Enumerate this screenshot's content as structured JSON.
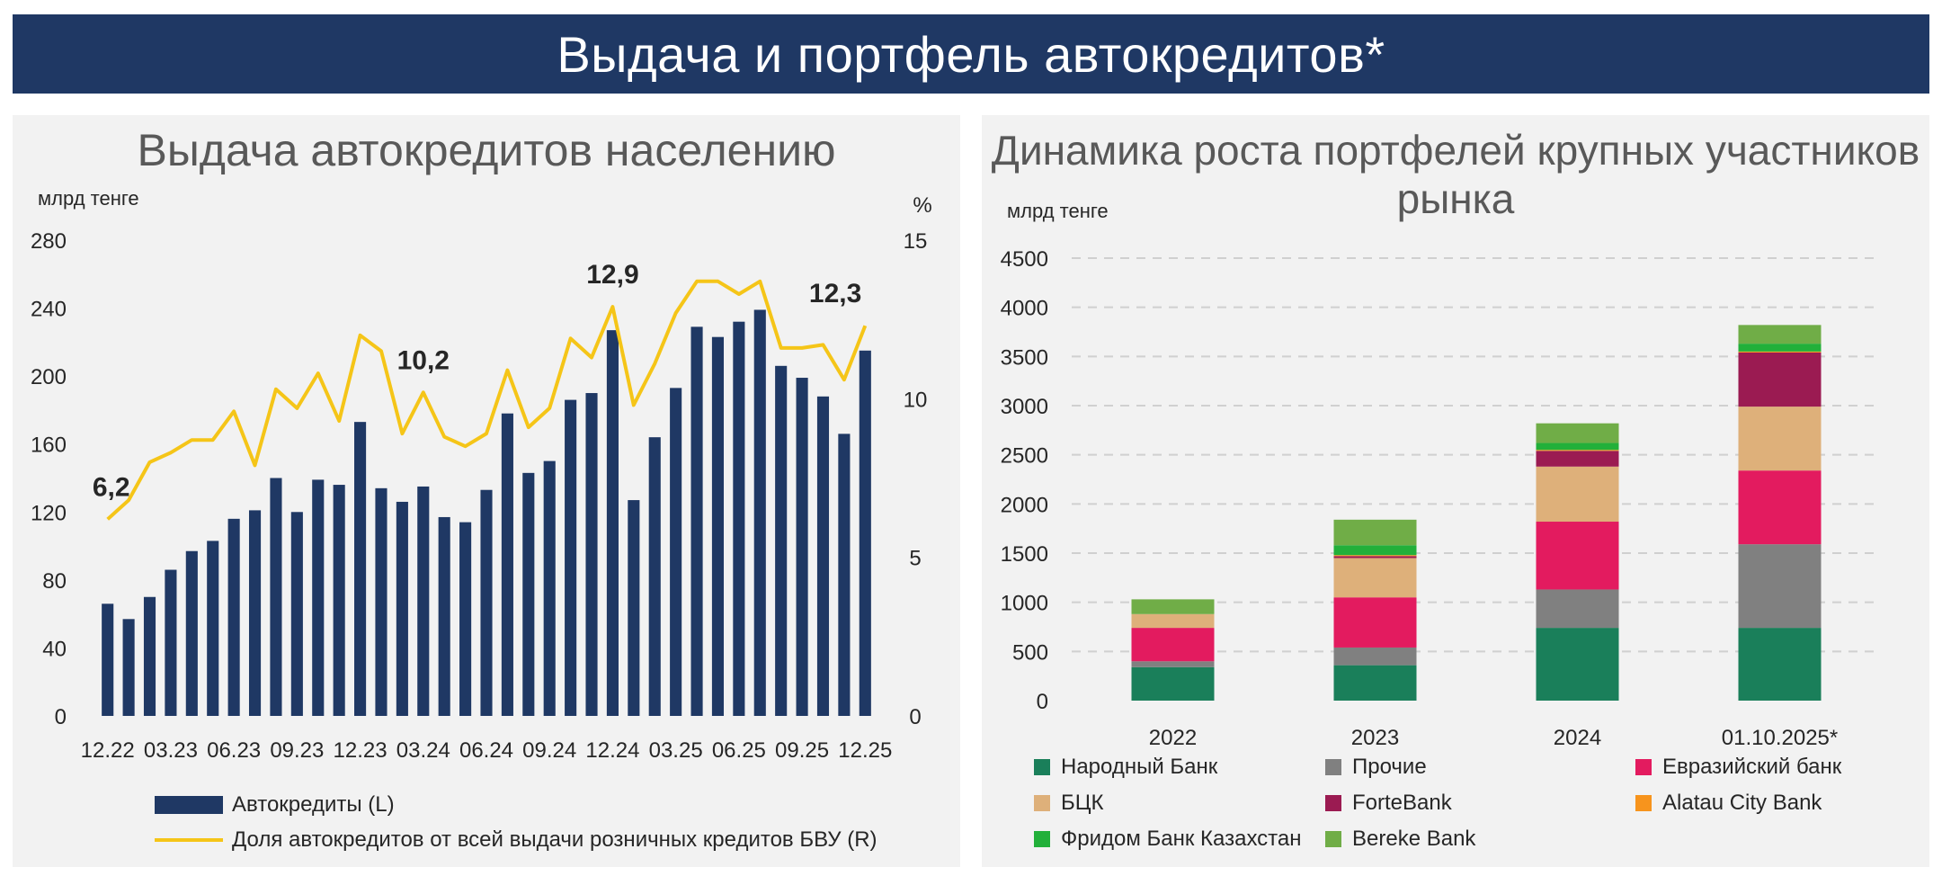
{
  "header": {
    "title": "Выдача и портфель автокредитов*"
  },
  "chart_data": [
    {
      "type": "bar",
      "title": "Выдача автокредитов населению",
      "ylabel_left": "млрд тенге",
      "ylabel_right": "%",
      "ylim_left": [
        0,
        280
      ],
      "yticks_left": [
        0,
        40,
        80,
        120,
        160,
        200,
        240,
        280
      ],
      "ylim_right": [
        0,
        15
      ],
      "yticks_right": [
        0,
        5,
        10,
        15
      ],
      "x": [
        "12.22",
        "01.23",
        "02.23",
        "03.23",
        "04.23",
        "05.23",
        "06.23",
        "07.23",
        "08.23",
        "09.23",
        "10.23",
        "11.23",
        "12.23",
        "01.24",
        "02.24",
        "03.24",
        "04.24",
        "05.24",
        "06.24",
        "07.24",
        "08.24",
        "09.24",
        "10.24",
        "11.24",
        "12.24",
        "01.25",
        "02.25",
        "03.25",
        "04.25",
        "05.25",
        "06.25",
        "07.25",
        "08.25",
        "09.25",
        "10.25",
        "11.25",
        "12.25"
      ],
      "x_tick_labels": [
        "12.22",
        "03.23",
        "06.23",
        "09.23",
        "12.23",
        "03.24",
        "06.24",
        "09.24",
        "12.24",
        "03.25",
        "06.25",
        "09.25",
        "12.25"
      ],
      "series": [
        {
          "name": "Автокредиты (L)",
          "axis": "left",
          "kind": "bar",
          "color": "#1f3864",
          "values": [
            66,
            57,
            70,
            86,
            97,
            103,
            116,
            121,
            140,
            120,
            139,
            136,
            173,
            134,
            126,
            135,
            117,
            114,
            133,
            178,
            143,
            150,
            186,
            190,
            227,
            127,
            164,
            193,
            229,
            223,
            232,
            239,
            206,
            199,
            188,
            166,
            215
          ]
        },
        {
          "name": "Доля автокредитов от всей выдачи розничных кредитов БВУ (R)",
          "axis": "right",
          "kind": "line",
          "color": "#f5c518",
          "values": [
            6.2,
            6.8,
            8.0,
            8.3,
            8.7,
            8.7,
            9.6,
            7.9,
            10.3,
            9.7,
            10.8,
            9.3,
            12.0,
            11.5,
            8.9,
            10.2,
            8.8,
            8.5,
            8.9,
            10.9,
            9.1,
            9.7,
            11.9,
            11.3,
            12.9,
            9.8,
            11.1,
            12.7,
            13.7,
            13.7,
            13.3,
            13.7,
            11.6,
            11.6,
            11.7,
            10.6,
            12.3
          ]
        }
      ],
      "annotations": [
        {
          "index": 0,
          "text": "6,2"
        },
        {
          "index": 15,
          "text": "10,2"
        },
        {
          "index": 24,
          "text": "12,9"
        },
        {
          "index": 36,
          "text": "12,3"
        }
      ]
    },
    {
      "type": "bar",
      "stacked": true,
      "title": "Динамика роста портфелей крупных участников рынка",
      "ylabel": "млрд тенге",
      "ylim": [
        0,
        4500
      ],
      "yticks": [
        0,
        500,
        1000,
        1500,
        2000,
        2500,
        3000,
        3500,
        4000,
        4500
      ],
      "categories": [
        "2022",
        "2023",
        "2024",
        "01.10.2025*"
      ],
      "grid": true,
      "series": [
        {
          "name": "Народный Банк",
          "color": "#1a7f5a",
          "values": [
            340,
            360,
            740,
            740
          ]
        },
        {
          "name": "Прочие",
          "color": "#808080",
          "values": [
            60,
            180,
            390,
            850
          ]
        },
        {
          "name": "Евразийский банк",
          "color": "#e31b5f",
          "values": [
            340,
            510,
            690,
            750
          ]
        },
        {
          "name": "БЦК",
          "color": "#deb07a",
          "values": [
            140,
            400,
            560,
            650
          ]
        },
        {
          "name": "ForteBank",
          "color": "#9b1b52",
          "values": [
            0,
            20,
            160,
            550
          ]
        },
        {
          "name": "Alatau City Bank",
          "color": "#f7941d",
          "values": [
            0,
            10,
            10,
            10
          ]
        },
        {
          "name": "Фридом Банк Казахстан",
          "color": "#22b03a",
          "values": [
            0,
            100,
            70,
            80
          ]
        },
        {
          "name": "Bereke Bank",
          "color": "#70ad47",
          "values": [
            150,
            260,
            200,
            190
          ]
        }
      ]
    }
  ]
}
